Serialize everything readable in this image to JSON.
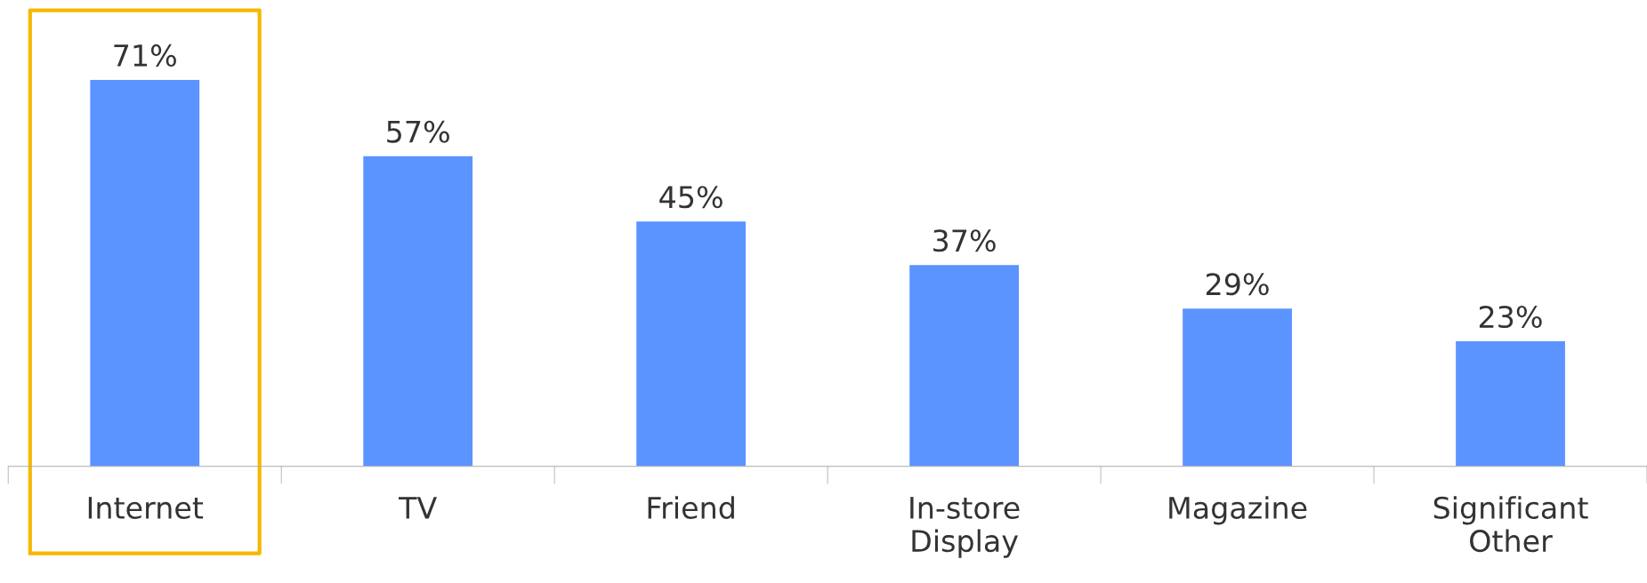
{
  "chart_data": {
    "type": "bar",
    "categories": [
      "Internet",
      "TV",
      "Friend",
      "In-store\nDisplay",
      "Magazine",
      "Significant\nOther"
    ],
    "values": [
      71,
      57,
      45,
      37,
      29,
      23
    ],
    "value_labels": [
      "71%",
      "57%",
      "45%",
      "37%",
      "29%",
      "23%"
    ],
    "color": "#5b93ff",
    "tick_labels": "x",
    "grid": false,
    "legend": false
  }
}
